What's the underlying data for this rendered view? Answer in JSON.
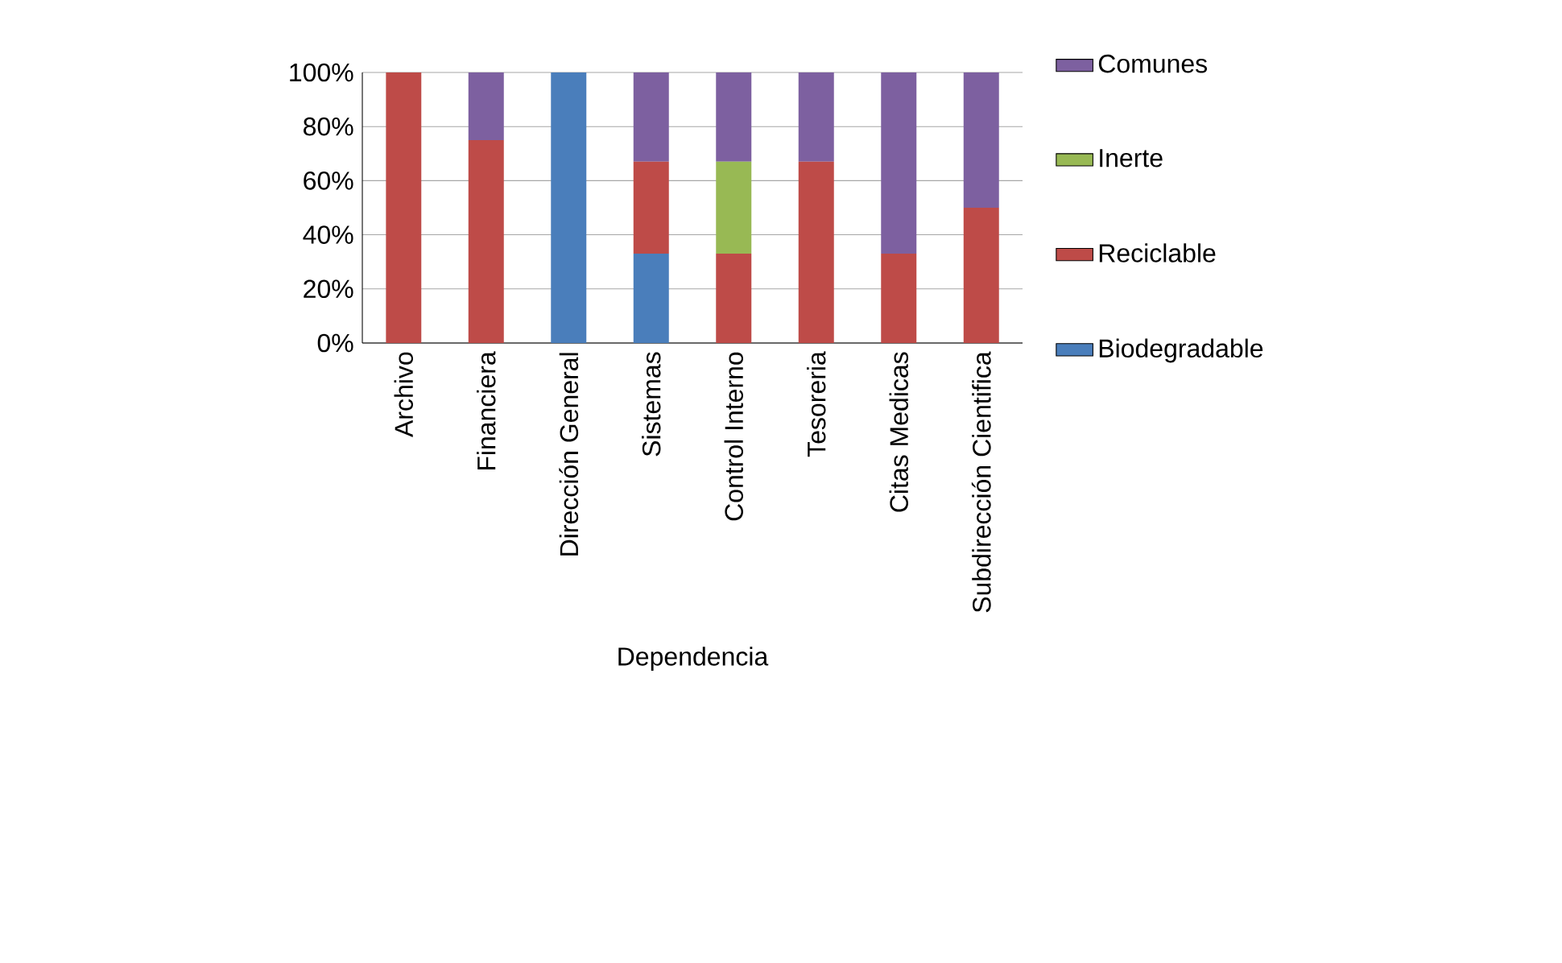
{
  "chart_data": {
    "type": "bar",
    "stacked": true,
    "xlabel": "Dependencia",
    "categories": [
      "Archivo",
      "Financiera",
      "Dirección General",
      "Sistemas",
      "Control Interno",
      "Tesoreria",
      "Citas Medicas",
      "Subdirección Cientifica"
    ],
    "series": [
      {
        "name": "Biodegradable",
        "color": "#4a7ebb",
        "values": [
          0,
          0,
          100,
          33,
          0,
          0,
          0,
          0
        ]
      },
      {
        "name": "Reciclable",
        "color": "#be4b48",
        "values": [
          100,
          75,
          0,
          34,
          33,
          67,
          33,
          50
        ]
      },
      {
        "name": "Inerte",
        "color": "#98b954",
        "values": [
          0,
          0,
          0,
          0,
          34,
          0,
          0,
          0
        ]
      },
      {
        "name": "Comunes",
        "color": "#7d60a0",
        "values": [
          0,
          25,
          0,
          33,
          33,
          33,
          67,
          50
        ]
      }
    ],
    "ylim": [
      0,
      100
    ],
    "yticks": [
      {
        "value": 0,
        "label": "0%"
      },
      {
        "value": 20,
        "label": "20%"
      },
      {
        "value": 40,
        "label": "40%"
      },
      {
        "value": 60,
        "label": "60%"
      },
      {
        "value": 80,
        "label": "80%"
      },
      {
        "value": 100,
        "label": "100%"
      }
    ],
    "grid": "y",
    "legend": "right"
  }
}
